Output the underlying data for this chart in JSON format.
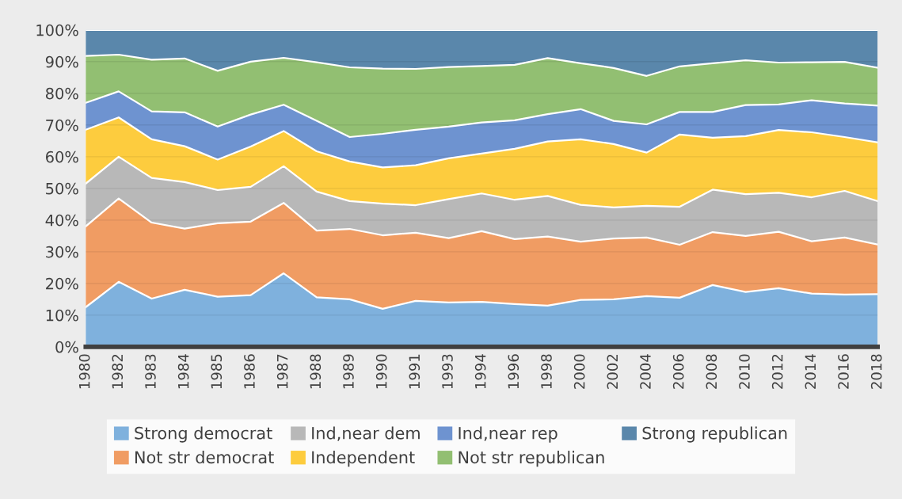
{
  "chart_data": {
    "type": "area",
    "stacked": true,
    "grid": "y",
    "legend": "bottom",
    "categories": [
      "1980",
      "1982",
      "1983",
      "1984",
      "1985",
      "1986",
      "1987",
      "1988",
      "1989",
      "1990",
      "1991",
      "1993",
      "1994",
      "1996",
      "1998",
      "2000",
      "2002",
      "2004",
      "2006",
      "2008",
      "2010",
      "2012",
      "2014",
      "2016",
      "2018"
    ],
    "ylim": [
      0,
      100
    ],
    "yticks": [
      {
        "value": 0,
        "label": "0%"
      },
      {
        "value": 10,
        "label": "10%"
      },
      {
        "value": 20,
        "label": "20%"
      },
      {
        "value": 30,
        "label": "30%"
      },
      {
        "value": 40,
        "label": "40%"
      },
      {
        "value": 50,
        "label": "50%"
      },
      {
        "value": 60,
        "label": "60%"
      },
      {
        "value": 70,
        "label": "70%"
      },
      {
        "value": 80,
        "label": "80%"
      },
      {
        "value": 90,
        "label": "90%"
      },
      {
        "value": 100,
        "label": "100%"
      }
    ],
    "series": [
      {
        "name": "Strong democrat",
        "color": "#7fb1dd",
        "values": [
          12.5,
          20.5,
          15.2,
          18,
          15.8,
          16.3,
          23.2,
          15.6,
          15,
          12,
          14.5,
          14,
          14.2,
          13.5,
          13,
          14.8,
          15,
          16,
          15.5,
          19.5,
          17.3,
          18.5,
          16.8,
          16.5,
          16.6
        ]
      },
      {
        "name": "Not str democrat",
        "color": "#f09c63",
        "values": [
          25.5,
          26.3,
          24,
          19.3,
          23.2,
          23.2,
          22.2,
          21.1,
          22.2,
          23.2,
          21.5,
          20.3,
          22.3,
          20.5,
          21.8,
          18.4,
          19.2,
          18.5,
          16.7,
          16.7,
          17.7,
          17.8,
          16.5,
          18,
          15.7
        ]
      },
      {
        "name": "Ind,near dem",
        "color": "#b8b8b8",
        "values": [
          13.5,
          13.2,
          14.1,
          14.7,
          10.5,
          11,
          11.6,
          12.3,
          8.8,
          10,
          8.7,
          12.3,
          11.9,
          12.4,
          12.8,
          11.6,
          9.8,
          10,
          12,
          13.4,
          13.2,
          12.3,
          13.9,
          14.7,
          13.7
        ]
      },
      {
        "name": "Independent",
        "color": "#fdcc3e",
        "values": [
          17,
          12.4,
          12.2,
          11.3,
          9.6,
          12.7,
          11.1,
          12.7,
          12.5,
          11.4,
          12.6,
          12.9,
          12.6,
          16.1,
          17.2,
          20.7,
          20,
          16.8,
          22.8,
          16.4,
          18.3,
          19.8,
          20.5,
          17,
          18.5
        ]
      },
      {
        "name": "Ind,near rep",
        "color": "#6e93d0",
        "values": [
          8.5,
          8.2,
          8.8,
          10.7,
          10.4,
          10.1,
          8.3,
          9.6,
          7.7,
          10.6,
          11.2,
          10,
          9.8,
          9,
          8.6,
          9.5,
          7.3,
          8.9,
          7.1,
          8.1,
          9.8,
          8.1,
          10.1,
          10.6,
          11.6
        ]
      },
      {
        "name": "Not str republican",
        "color": "#92bf72",
        "values": [
          14.8,
          11.6,
          16.3,
          17,
          17.6,
          16.7,
          14.8,
          18.5,
          22,
          20.6,
          19.2,
          18.8,
          17.8,
          17.5,
          17.7,
          14.5,
          16.7,
          15.3,
          14.4,
          15.4,
          14.1,
          13.2,
          12,
          13.1,
          12
        ]
      },
      {
        "name": "Strong republican",
        "color": "#5a87ab",
        "values": [
          8.2,
          7.8,
          9.4,
          9,
          12.9,
          10,
          8.8,
          10.2,
          11.8,
          12.2,
          12.3,
          11.7,
          11.4,
          11,
          8.9,
          10.5,
          12,
          14.5,
          11.5,
          10.5,
          9.6,
          10.3,
          10.2,
          10.1,
          11.9
        ]
      }
    ]
  }
}
